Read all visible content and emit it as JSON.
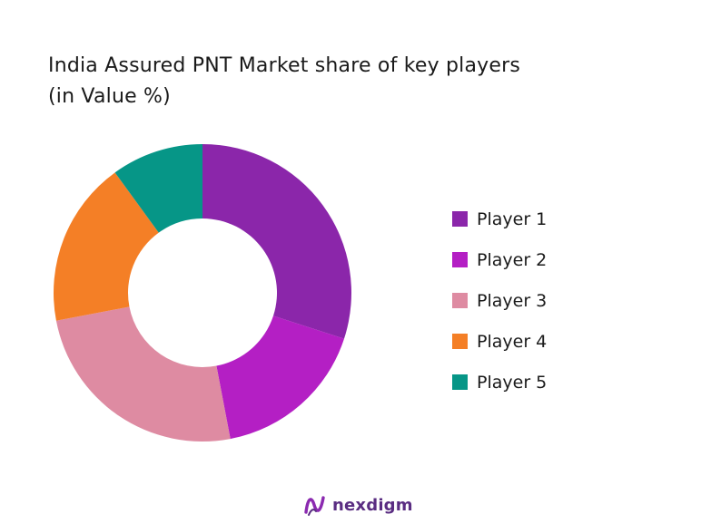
{
  "chart_data": {
    "type": "donut",
    "title_lines": [
      "India Assured PNT Market share of key players",
      "(in Value %)"
    ],
    "categories": [
      "Player 1",
      "Player 2",
      "Player 3",
      "Player 4",
      "Player 5"
    ],
    "values": [
      30,
      17,
      25,
      18,
      10
    ],
    "value_unit": "%",
    "colors": [
      "#8B26AA",
      "#B41FC4",
      "#DE8BA2",
      "#F47F26",
      "#069687"
    ],
    "legend_position": "right",
    "hole_ratio": 0.5
  },
  "brand": {
    "name": "nexdigm",
    "logo_icon": "nexdigm-logo-icon"
  }
}
